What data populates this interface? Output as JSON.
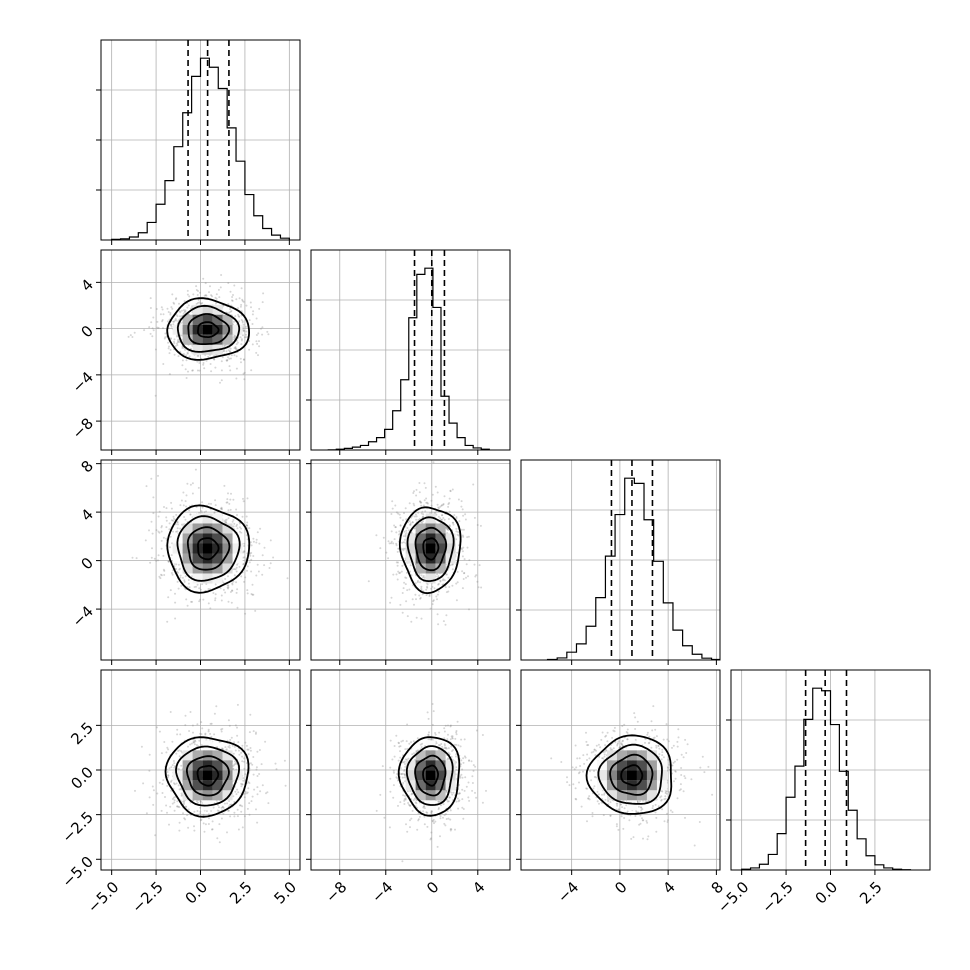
{
  "chart_data": {
    "type": "corner",
    "n_params": 4,
    "grid": true,
    "ranges": [
      [
        -5.6,
        5.6
      ],
      [
        -10.5,
        6.8
      ],
      [
        -8.2,
        8.3
      ],
      [
        -5.6,
        5.6
      ]
    ],
    "ticks": [
      {
        "values": [
          -5.0,
          -2.5,
          0.0,
          2.5,
          5.0
        ],
        "labels": [
          "−5.0",
          "−2.5",
          "0.0",
          "2.5",
          "5.0"
        ]
      },
      {
        "values": [
          -8,
          -4,
          0,
          4
        ],
        "labels": [
          "−8",
          "−4",
          "0",
          "4"
        ]
      },
      {
        "values": [
          -4,
          0,
          4,
          8
        ],
        "labels": [
          "−4",
          "0",
          "4",
          "8"
        ]
      },
      {
        "values": [
          -5.0,
          -2.5,
          0.0,
          2.5
        ],
        "labels": [
          "−5.0",
          "−2.5",
          "0.0",
          "2.5"
        ]
      }
    ],
    "left_ticks": [
      {
        "values": [
          4,
          0,
          -4,
          -8
        ],
        "labels": [
          "4",
          "0",
          "−4",
          "−8"
        ]
      },
      {
        "values": [
          8,
          4,
          0,
          -4
        ],
        "labels": [
          "8",
          "4",
          "0",
          "−4"
        ]
      },
      {
        "values": [
          2.5,
          0.0,
          -2.5,
          -5.0
        ],
        "labels": [
          "2.5",
          "0.0",
          "−2.5",
          "−5.0"
        ]
      }
    ],
    "params": [
      {
        "mean": 0.4,
        "sd": 1.15,
        "quantiles": [
          -0.7,
          0.4,
          1.6
        ]
      },
      {
        "mean": -0.1,
        "sd": 1.3,
        "quantiles": [
          -1.5,
          0.0,
          1.1
        ]
      },
      {
        "mean": 1.0,
        "sd": 1.75,
        "quantiles": [
          -0.7,
          1.0,
          2.7
        ]
      },
      {
        "mean": -0.3,
        "sd": 1.1,
        "quantiles": [
          -1.4,
          -0.3,
          0.9
        ]
      }
    ],
    "histograms": [
      {
        "bin_edges": [
          -5.0,
          -4.5,
          -4.0,
          -3.5,
          -3.0,
          -2.5,
          -2.0,
          -1.5,
          -1.0,
          -0.5,
          0.0,
          0.5,
          1.0,
          1.5,
          2.0,
          2.5,
          3.0,
          3.5,
          4.0,
          4.5,
          5.0
        ],
        "counts": [
          2,
          4,
          10,
          24,
          58,
          118,
          196,
          308,
          420,
          540,
          600,
          570,
          500,
          370,
          260,
          150,
          80,
          38,
          16,
          6
        ]
      },
      {
        "bin_edges": [
          -9.0,
          -8.3,
          -7.6,
          -6.9,
          -6.2,
          -5.5,
          -4.8,
          -4.1,
          -3.4,
          -2.7,
          -2.0,
          -1.3,
          -0.6,
          0.1,
          0.8,
          1.5,
          2.2,
          2.9,
          3.6,
          4.3,
          5.0
        ],
        "counts": [
          1,
          4,
          8,
          14,
          22,
          40,
          60,
          100,
          190,
          340,
          640,
          850,
          880,
          690,
          260,
          130,
          60,
          22,
          10,
          4
        ]
      },
      {
        "bin_edges": [
          -6.0,
          -5.2,
          -4.4,
          -3.6,
          -2.8,
          -2.0,
          -1.2,
          -0.4,
          0.4,
          1.2,
          2.0,
          2.8,
          3.6,
          4.4,
          5.2,
          6.0,
          6.8,
          7.6,
          8.4
        ],
        "counts": [
          2,
          8,
          30,
          62,
          130,
          240,
          400,
          560,
          700,
          680,
          540,
          380,
          220,
          115,
          55,
          22,
          7,
          2
        ]
      },
      {
        "bin_edges": [
          -5.0,
          -4.5,
          -4.0,
          -3.5,
          -3.0,
          -2.5,
          -2.0,
          -1.5,
          -1.0,
          -0.5,
          0.0,
          0.5,
          1.0,
          1.5,
          2.0,
          2.5,
          3.0,
          3.5,
          4.0,
          4.5
        ],
        "counts": [
          3,
          8,
          22,
          60,
          140,
          280,
          400,
          580,
          700,
          690,
          560,
          380,
          230,
          120,
          55,
          20,
          8,
          3,
          1
        ]
      }
    ],
    "n_samples": 10000
  }
}
